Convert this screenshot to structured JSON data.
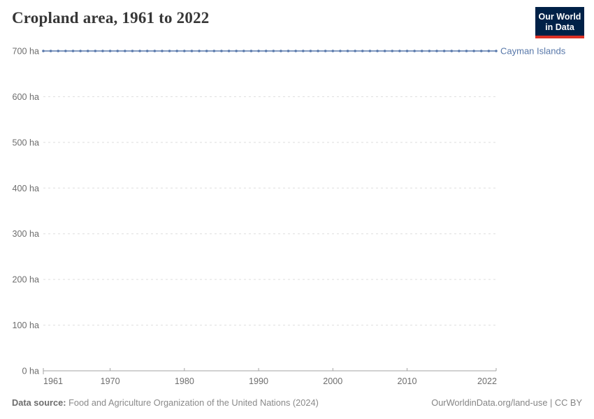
{
  "header": {
    "title": "Cropland area, 1961 to 2022",
    "logo": {
      "line1": "Our World",
      "line2": "in Data",
      "bg_color": "#002147",
      "accent_color": "#dc3025",
      "text_color": "#ffffff"
    }
  },
  "chart_data": {
    "type": "line",
    "title": "Cropland area, 1961 to 2022",
    "unit": "ha",
    "x": [
      1961,
      1962,
      1963,
      1964,
      1965,
      1966,
      1967,
      1968,
      1969,
      1970,
      1971,
      1972,
      1973,
      1974,
      1975,
      1976,
      1977,
      1978,
      1979,
      1980,
      1981,
      1982,
      1983,
      1984,
      1985,
      1986,
      1987,
      1988,
      1989,
      1990,
      1991,
      1992,
      1993,
      1994,
      1995,
      1996,
      1997,
      1998,
      1999,
      2000,
      2001,
      2002,
      2003,
      2004,
      2005,
      2006,
      2007,
      2008,
      2009,
      2010,
      2011,
      2012,
      2013,
      2014,
      2015,
      2016,
      2017,
      2018,
      2019,
      2020,
      2021,
      2022
    ],
    "series": [
      {
        "name": "Cayman Islands",
        "color": "#5878ab",
        "label_color": "#5777a9",
        "values": [
          700,
          700,
          700,
          700,
          700,
          700,
          700,
          700,
          700,
          700,
          700,
          700,
          700,
          700,
          700,
          700,
          700,
          700,
          700,
          700,
          700,
          700,
          700,
          700,
          700,
          700,
          700,
          700,
          700,
          700,
          700,
          700,
          700,
          700,
          700,
          700,
          700,
          700,
          700,
          700,
          700,
          700,
          700,
          700,
          700,
          700,
          700,
          700,
          700,
          700,
          700,
          700,
          700,
          700,
          700,
          700,
          700,
          700,
          700,
          700,
          700,
          700
        ]
      }
    ],
    "xlim": [
      1961,
      2022
    ],
    "ylim": [
      0,
      700
    ],
    "xticks": [
      1961,
      1970,
      1980,
      1990,
      2000,
      2010,
      2022
    ],
    "yticks": [
      0,
      100,
      200,
      300,
      400,
      500,
      600,
      700
    ],
    "ytick_suffix": " ha",
    "grid": "horizontal-dashed",
    "legend_position": "right-of-line",
    "style": {
      "grid_color": "#dddddd",
      "axis_color": "#a3a3a3",
      "tick_label_color": "#6e6e6e"
    }
  },
  "footer": {
    "source_label": "Data source:",
    "source_text": "Food and Agriculture Organization of the United Nations (2024)",
    "link": "OurWorldinData.org/land-use",
    "license_suffix": " | CC BY"
  }
}
